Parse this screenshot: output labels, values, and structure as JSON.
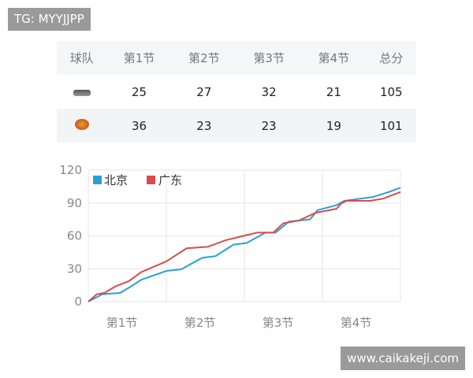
{
  "watermarks": {
    "top": "TG: MYYJJPP",
    "bottom": "www.caikakeji.com"
  },
  "table": {
    "headers": [
      "球队",
      "第1节",
      "第2节",
      "第3节",
      "第4节",
      "总分"
    ],
    "rows": [
      {
        "team_logo": "beijing-logo",
        "scores": [
          "25",
          "27",
          "32",
          "21",
          "105"
        ]
      },
      {
        "team_logo": "guangdong-logo",
        "scores": [
          "36",
          "23",
          "23",
          "19",
          "101"
        ]
      }
    ]
  },
  "chart_data": {
    "type": "line",
    "xlabel": "",
    "ylabel": "",
    "x_ticks": [
      "第1节",
      "第2节",
      "第3节",
      "第4节"
    ],
    "xlim": [
      0,
      4
    ],
    "y_ticks": [
      "0",
      "30",
      "60",
      "90",
      "120"
    ],
    "ylim": [
      0,
      120
    ],
    "grid": true,
    "legend": "top-left",
    "series": [
      {
        "name": "北京",
        "color": "#2a9fd6",
        "points": [
          [
            0,
            0
          ],
          [
            0.18,
            6.7
          ],
          [
            0.41,
            8
          ],
          [
            0.55,
            14
          ],
          [
            0.68,
            20
          ],
          [
            1.0,
            28
          ],
          [
            1.19,
            29.5
          ],
          [
            1.46,
            40
          ],
          [
            1.63,
            41.5
          ],
          [
            1.86,
            52
          ],
          [
            2.03,
            53.5
          ],
          [
            2.27,
            63
          ],
          [
            2.4,
            63
          ],
          [
            2.57,
            73
          ],
          [
            2.84,
            75
          ],
          [
            2.94,
            83.5
          ],
          [
            3.18,
            88
          ],
          [
            3.28,
            92
          ],
          [
            3.65,
            95.5
          ],
          [
            3.85,
            100
          ],
          [
            4.0,
            104
          ]
        ]
      },
      {
        "name": "广东",
        "color": "#d94b4b",
        "points": [
          [
            0,
            0
          ],
          [
            0.11,
            6.7
          ],
          [
            0.21,
            8
          ],
          [
            0.35,
            14
          ],
          [
            0.52,
            18.7
          ],
          [
            0.68,
            27
          ],
          [
            1.0,
            36.7
          ],
          [
            1.26,
            48.7
          ],
          [
            1.53,
            50
          ],
          [
            1.76,
            56
          ],
          [
            2.03,
            60.7
          ],
          [
            2.17,
            63
          ],
          [
            2.37,
            63
          ],
          [
            2.5,
            71.5
          ],
          [
            2.7,
            74
          ],
          [
            2.91,
            81
          ],
          [
            3.18,
            84.7
          ],
          [
            3.24,
            89.5
          ],
          [
            3.31,
            92
          ],
          [
            3.61,
            92
          ],
          [
            3.78,
            94
          ],
          [
            4.0,
            100
          ]
        ]
      }
    ]
  }
}
